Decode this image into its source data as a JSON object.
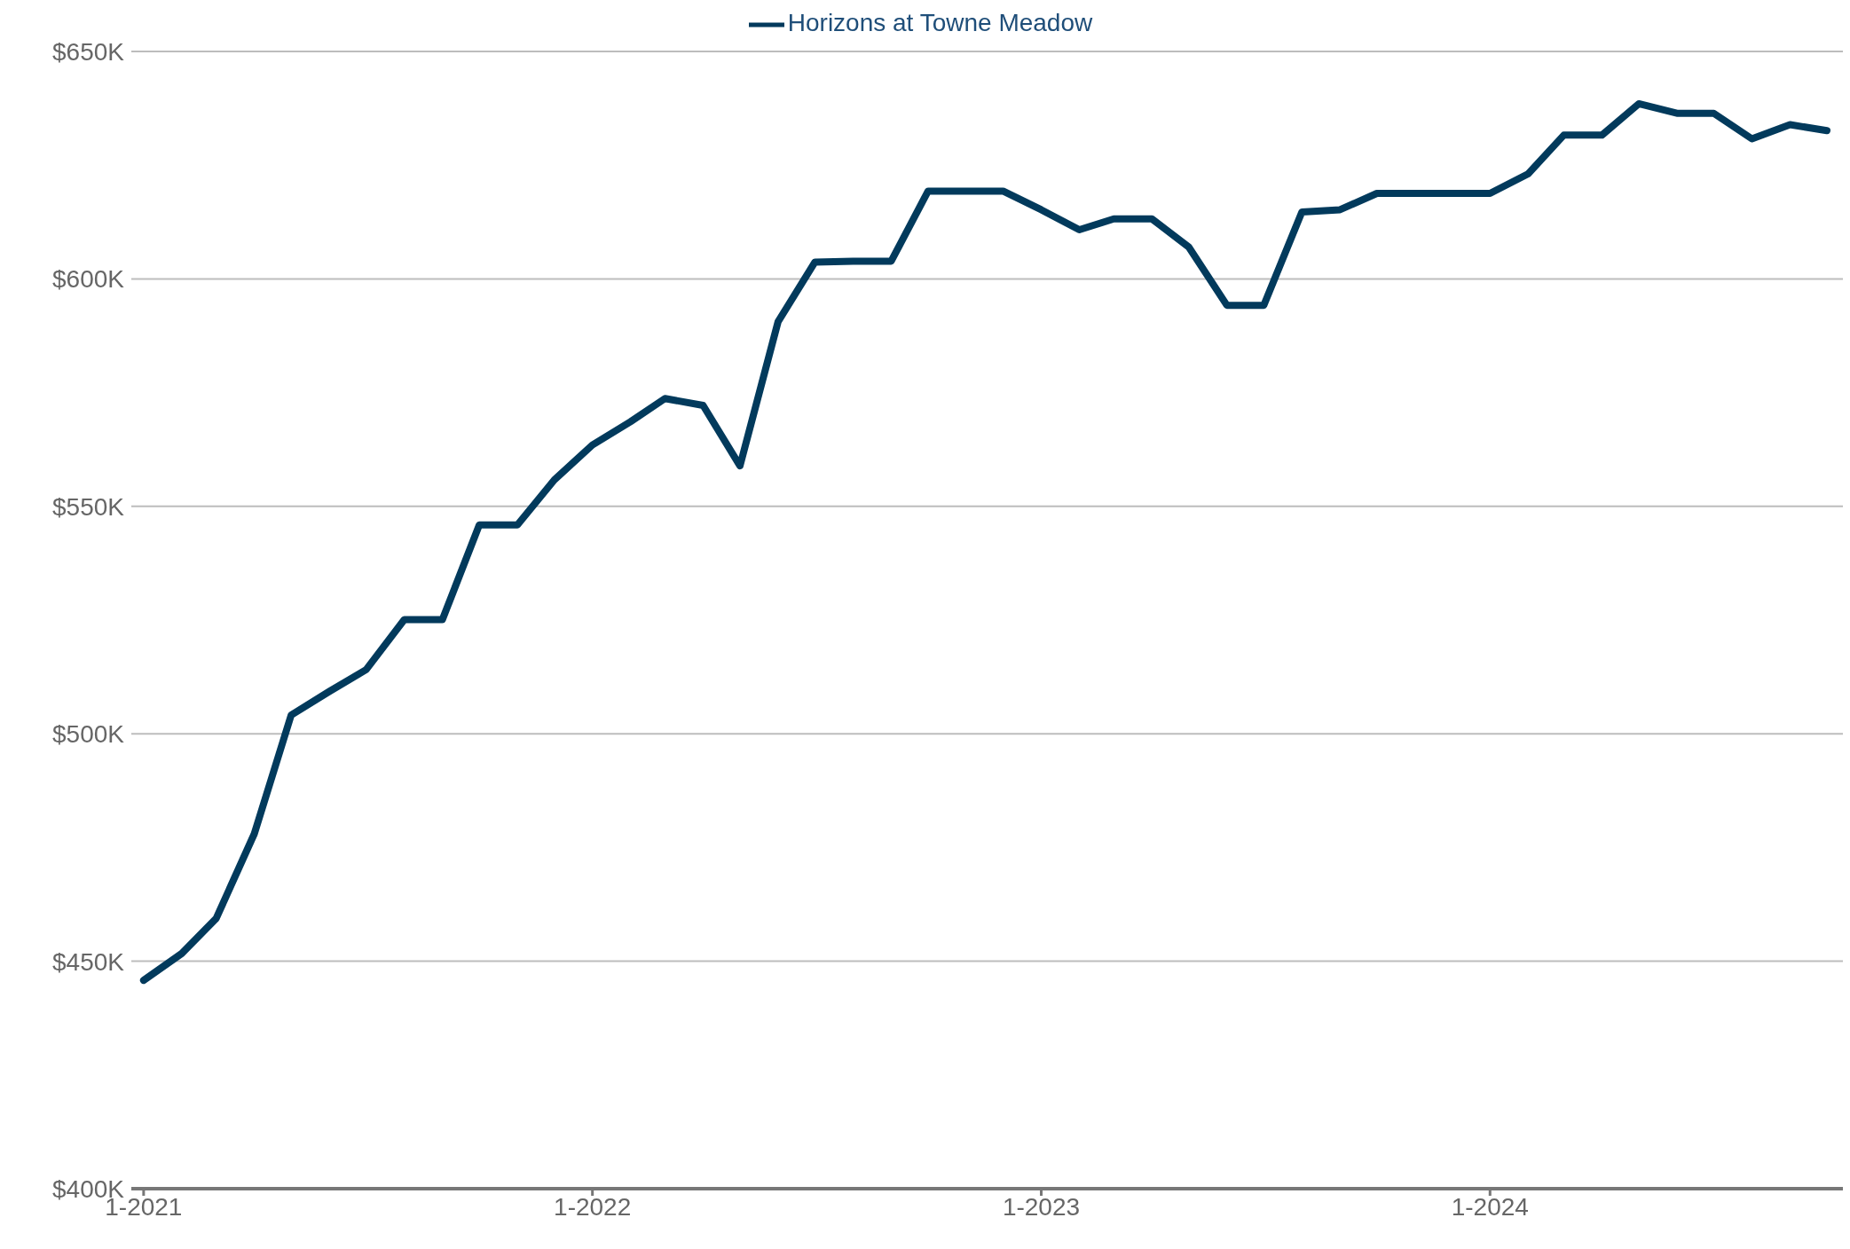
{
  "chart_data": {
    "type": "line",
    "x": [
      "2021-01",
      "2021-02",
      "2021-03",
      "2021-04",
      "2021-05",
      "2021-06",
      "2021-07",
      "2021-08",
      "2021-09",
      "2021-10",
      "2021-11",
      "2021-12",
      "2022-01",
      "2022-02",
      "2022-03",
      "2022-04",
      "2022-05",
      "2022-06",
      "2022-07",
      "2022-08",
      "2022-09",
      "2022-10",
      "2022-11",
      "2022-12",
      "2023-01",
      "2023-02",
      "2023-03",
      "2023-04",
      "2023-05",
      "2023-06",
      "2023-07",
      "2023-08",
      "2023-09",
      "2023-10",
      "2023-11",
      "2023-12",
      "2024-01",
      "2024-02",
      "2024-03",
      "2024-04",
      "2024-05",
      "2024-06",
      "2024-07",
      "2024-08",
      "2024-09",
      "2024-10"
    ],
    "series": [
      {
        "name": "Horizons at Towne Meadow",
        "color": "#023a5c",
        "values": [
          445800,
          451700,
          459400,
          478000,
          504100,
          509300,
          514100,
          525100,
          525100,
          545900,
          545900,
          555800,
          563500,
          568600,
          573700,
          572200,
          558900,
          590600,
          603700,
          603900,
          603900,
          619300,
          619300,
          619300,
          615200,
          610800,
          613200,
          613200,
          607000,
          594200,
          594200,
          614700,
          615200,
          618800,
          618800,
          618800,
          618800,
          623100,
          631600,
          631600,
          638500,
          636400,
          636400,
          630800,
          633900,
          632600
        ]
      }
    ],
    "xlim": [
      "2020-12-22",
      "2024-10-14"
    ],
    "xticks": [
      {
        "value": "2021-01",
        "label": "1-2021"
      },
      {
        "value": "2022-01",
        "label": "1-2022"
      },
      {
        "value": "2023-01",
        "label": "1-2023"
      },
      {
        "value": "2024-01",
        "label": "1-2024"
      }
    ],
    "ylim": [
      400000,
      650000
    ],
    "yticks": [
      {
        "value": 400000,
        "label": "$400K"
      },
      {
        "value": 450000,
        "label": "$450K"
      },
      {
        "value": 500000,
        "label": "$500K"
      },
      {
        "value": 550000,
        "label": "$550K"
      },
      {
        "value": 600000,
        "label": "$600K"
      },
      {
        "value": 650000,
        "label": "$650K"
      }
    ],
    "grid": "y",
    "legend": "top"
  }
}
